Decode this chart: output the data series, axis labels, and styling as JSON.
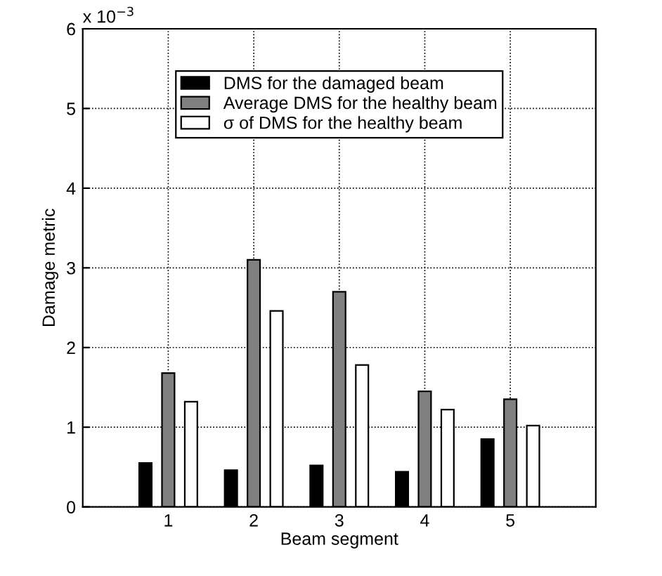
{
  "chart_data": {
    "type": "bar",
    "xlabel": "Beam segment",
    "ylabel": "Damage metric",
    "categories": [
      "1",
      "2",
      "3",
      "4",
      "5"
    ],
    "series": [
      {
        "name": "DMS for the damaged beam",
        "color": "#000000",
        "values": [
          0.55,
          0.46,
          0.52,
          0.44,
          0.85
        ]
      },
      {
        "name": "Average DMS for the healthy beam",
        "color": "#808080",
        "values": [
          1.68,
          3.1,
          2.7,
          1.45,
          1.35
        ]
      },
      {
        "name": "σ of DMS for the healthy beam",
        "color": "#ffffff",
        "values": [
          1.32,
          2.46,
          1.78,
          1.22,
          1.02
        ]
      }
    ],
    "ylim": [
      0,
      6
    ],
    "yticks": [
      0,
      1,
      2,
      3,
      4,
      5,
      6
    ],
    "annotations": [
      "x 10$^{−3}$"
    ],
    "grid": true,
    "legend": "top"
  }
}
